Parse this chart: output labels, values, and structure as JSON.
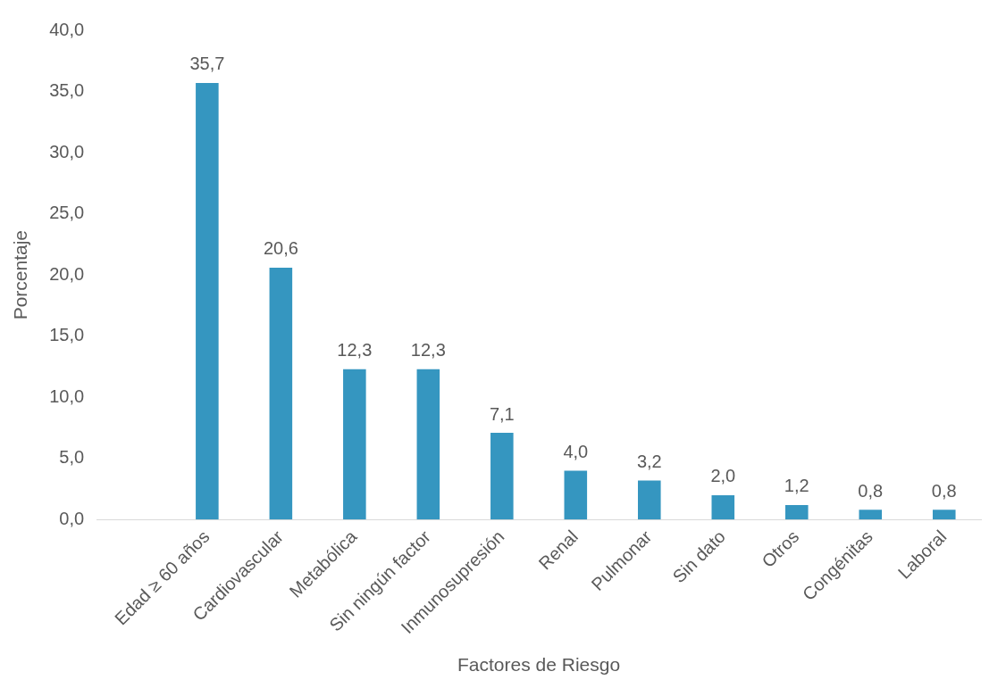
{
  "chart_data": {
    "type": "bar",
    "xlabel": "Factores de Riesgo",
    "ylabel": "Porcentaje",
    "categories": [
      null,
      "Edad ≥ 60 años",
      "Cardiovascular",
      "Metabólica",
      "Sin ningún factor",
      "Inmunosupresión",
      "Renal",
      "Pulmonar",
      "Sin dato",
      "Otros",
      "Congénitas",
      "Laboral"
    ],
    "values": [
      null,
      35.7,
      20.6,
      12.3,
      12.3,
      7.1,
      4.0,
      3.2,
      2.0,
      1.2,
      0.8,
      0.8
    ],
    "value_labels": [
      null,
      "35,7",
      "20,6",
      "12,3",
      "12,3",
      "7,1",
      "4,0",
      "3,2",
      "2,0",
      "1,2",
      "0,8",
      "0,8"
    ],
    "color": "#3596c0",
    "ylim": [
      0,
      40
    ],
    "yticks": [
      {
        "value": 0,
        "label": "0,0"
      },
      {
        "value": 5,
        "label": "5,0"
      },
      {
        "value": 10,
        "label": "10,0"
      },
      {
        "value": 15,
        "label": "15,0"
      },
      {
        "value": 20,
        "label": "20,0"
      },
      {
        "value": 25,
        "label": "25,0"
      },
      {
        "value": 30,
        "label": "30,0"
      },
      {
        "value": 35,
        "label": "35,0"
      },
      {
        "value": 40,
        "label": "40,0"
      }
    ]
  }
}
